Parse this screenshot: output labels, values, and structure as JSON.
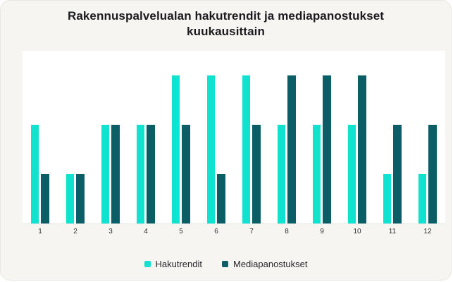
{
  "title": "Rakennuspalvelualan hakutrendit ja mediapanostukset kuukausittain",
  "colors": {
    "card_background": "#F7F5F2",
    "plot_background": "#FFFFFF",
    "hakutrendit": "#10E2D0",
    "mediapanostukset": "#0B5E66",
    "title_text": "#1B1B1F",
    "tick_text": "#2E2E33"
  },
  "legend": {
    "items": [
      {
        "label": "Hakutrendit",
        "color": "#10E2D0"
      },
      {
        "label": "Mediapanostukset",
        "color": "#0B5E66"
      }
    ]
  },
  "chart_data": {
    "type": "bar",
    "title": "Rakennuspalvelualan hakutrendit ja mediapanostukset kuukausittain",
    "categories": [
      "1",
      "2",
      "3",
      "4",
      "5",
      "6",
      "7",
      "8",
      "9",
      "10",
      "11",
      "12"
    ],
    "series": [
      {
        "name": "Hakutrendit",
        "color": "#10E2D0",
        "values": [
          2,
          1,
          2,
          2,
          3,
          3,
          3,
          2,
          2,
          2,
          1,
          1
        ]
      },
      {
        "name": "Mediapanostukset",
        "color": "#0B5E66",
        "values": [
          1,
          1,
          2,
          2,
          2,
          1,
          2,
          3,
          3,
          3,
          2,
          2
        ]
      }
    ],
    "xlabel": "",
    "ylabel": "",
    "ylim": [
      0,
      3.5
    ],
    "grid": false,
    "yaxis_tick_labels_visible": false,
    "legend_position": "bottom",
    "note_units": "relative heights: 1 = low, 2 = medium, 3 = high (no y-axis scale shown)"
  }
}
